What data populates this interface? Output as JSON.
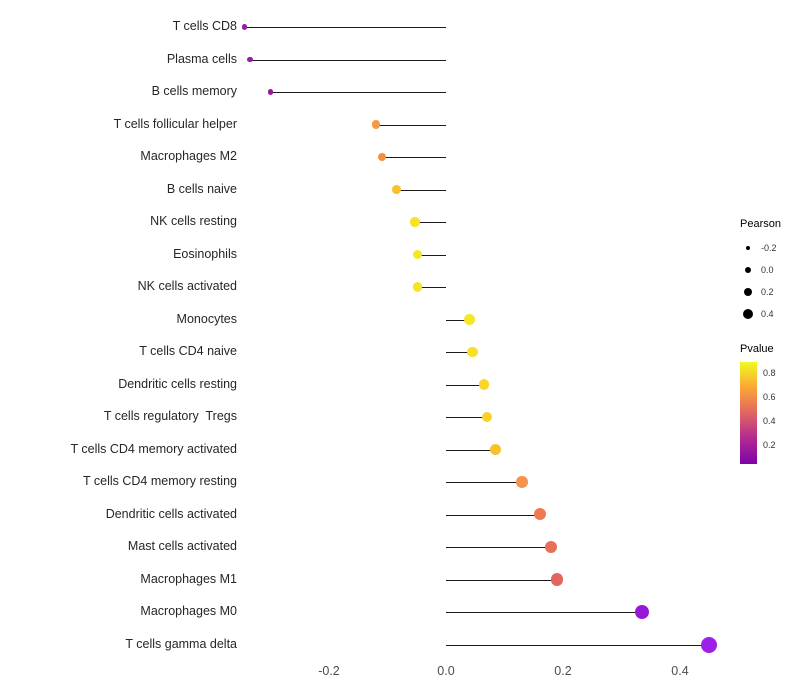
{
  "chart_data": {
    "type": "lollipop",
    "title": "",
    "xlabel": "",
    "ylabel": "",
    "grid": false,
    "x_ticks": [
      "-0.2",
      "0.0",
      "0.2",
      "0.4"
    ],
    "x_tick_values": [
      -0.2,
      0.0,
      0.2,
      0.4
    ],
    "xlim": [
      -0.36,
      0.47
    ],
    "points": [
      {
        "label": "T cells CD8",
        "pearson": -0.345,
        "pvalue": 0.15,
        "color": "#951CA8"
      },
      {
        "label": "Plasma cells",
        "pearson": -0.335,
        "pvalue": 0.16,
        "color": "#951CA8"
      },
      {
        "label": "B cells memory",
        "pearson": -0.3,
        "pvalue": 0.2,
        "color": "#9C179E"
      },
      {
        "label": "T cells follicular helper",
        "pearson": -0.12,
        "pvalue": 0.55,
        "color": "#F49A45"
      },
      {
        "label": "Macrophages M2",
        "pearson": -0.11,
        "pvalue": 0.53,
        "color": "#F39140"
      },
      {
        "label": "B cells naive",
        "pearson": -0.085,
        "pvalue": 0.62,
        "color": "#FAC228"
      },
      {
        "label": "NK cells resting",
        "pearson": -0.053,
        "pvalue": 0.75,
        "color": "#F7E225"
      },
      {
        "label": "Eosinophils",
        "pearson": -0.048,
        "pvalue": 0.78,
        "color": "#F4E825"
      },
      {
        "label": "NK cells activated",
        "pearson": -0.048,
        "pvalue": 0.76,
        "color": "#F5E424"
      },
      {
        "label": "Monocytes",
        "pearson": 0.04,
        "pvalue": 0.78,
        "color": "#F6E726"
      },
      {
        "label": "T cells CD4 naive",
        "pearson": 0.045,
        "pvalue": 0.74,
        "color": "#F8E026"
      },
      {
        "label": "Dendritic cells resting",
        "pearson": 0.065,
        "pvalue": 0.7,
        "color": "#FAD626"
      },
      {
        "label": "T cells regulatory  Tregs",
        "pearson": 0.07,
        "pvalue": 0.68,
        "color": "#FBD127"
      },
      {
        "label": "T cells CD4 memory activated",
        "pearson": 0.085,
        "pvalue": 0.62,
        "color": "#FBC02C"
      },
      {
        "label": "T cells CD4 memory resting",
        "pearson": 0.13,
        "pvalue": 0.52,
        "color": "#F6934E"
      },
      {
        "label": "Dendritic cells activated",
        "pearson": 0.16,
        "pvalue": 0.45,
        "color": "#EE7A52"
      },
      {
        "label": "Mast cells activated",
        "pearson": 0.18,
        "pvalue": 0.42,
        "color": "#EA6F59"
      },
      {
        "label": "Macrophages M1",
        "pearson": 0.19,
        "pvalue": 0.4,
        "color": "#E3655F"
      },
      {
        "label": "Macrophages M0",
        "pearson": 0.335,
        "pvalue": 0.1,
        "color": "#9719D8"
      },
      {
        "label": "T cells gamma delta",
        "pearson": 0.45,
        "pvalue": 0.05,
        "color": "#9D1FE8"
      }
    ],
    "legend_size": {
      "title": "Pearson",
      "values": [
        -0.2,
        0.0,
        0.2,
        0.4
      ],
      "labels": [
        "-0.2",
        "0.0",
        "0.2",
        "0.4"
      ],
      "dot_color": "#000000"
    },
    "legend_color": {
      "title": "Pvalue",
      "labels": [
        "0.8",
        "0.6",
        "0.4",
        "0.2"
      ],
      "gradient": [
        "#F0F921",
        "#FCA636",
        "#E16462",
        "#B12A90",
        "#7E03A8"
      ]
    }
  }
}
